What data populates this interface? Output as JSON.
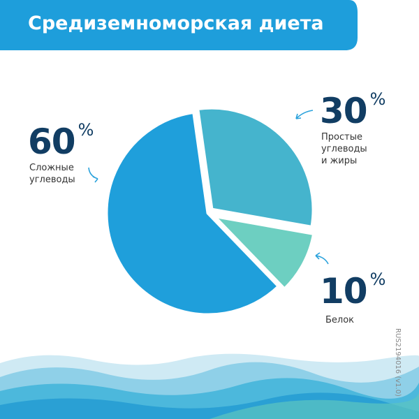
{
  "chart_data": {
    "type": "pie",
    "title": "Средиземноморская диета",
    "categories": [
      "Сложные углеводы",
      "Простые углеводы и жиры",
      "Белок"
    ],
    "values": [
      60,
      30,
      10
    ],
    "value_labels": [
      "60%",
      "30%",
      "10%"
    ],
    "colors": [
      "#1f9fdb",
      "#45b4cd",
      "#6dcfc1"
    ]
  },
  "footnote": "RUS2194016 (v1.0)"
}
